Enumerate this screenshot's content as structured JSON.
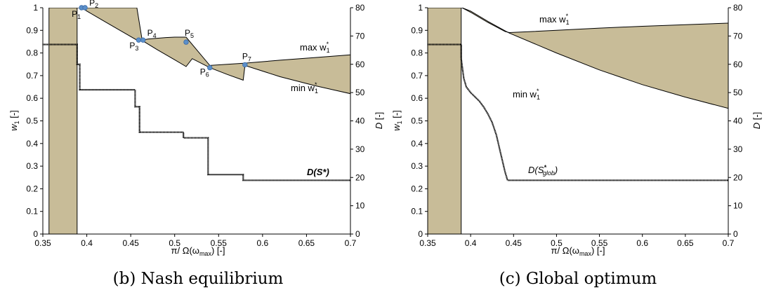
{
  "chart_data": [
    {
      "type": "line",
      "caption": "(b) Nash equilibrium",
      "xlabel": "π/ Ω(ω_max) [-]",
      "ylabel_left": "w1 [-]",
      "ylabel_right": "D [-]",
      "xlim": [
        0.35,
        0.7
      ],
      "ylim_left": [
        0,
        1
      ],
      "ylim_right": [
        0,
        80
      ],
      "x_ticks": [
        "0.35",
        "0.4",
        "0.45",
        "0.5",
        "0.55",
        "0.6",
        "0.65",
        "0.7"
      ],
      "y_left_ticks": [
        "0",
        "0.1",
        "0.2",
        "0.3",
        "0.4",
        "0.5",
        "0.6",
        "0.7",
        "0.8",
        "0.9",
        "1"
      ],
      "y_right_ticks": [
        "0",
        "10",
        "20",
        "30",
        "40",
        "50",
        "60",
        "70",
        "80"
      ],
      "colors": {
        "band": "#c8bc98",
        "band_stroke": "#000000",
        "point": "#5b8fc9",
        "line": "#000000"
      },
      "band_left": {
        "x": [
          0.357,
          0.389
        ],
        "lower": 0.0,
        "upper": 1.0
      },
      "max_w1": {
        "x": [
          0.389,
          0.394,
          0.4,
          0.41,
          0.42,
          0.43,
          0.44,
          0.45,
          0.457,
          0.463,
          0.47,
          0.48,
          0.49,
          0.5,
          0.51,
          0.513,
          0.54,
          0.58,
          0.62,
          0.66,
          0.7
        ],
        "y": [
          1.0,
          1.0,
          1.0,
          1.0,
          1.0,
          1.0,
          1.0,
          1.0,
          1.0,
          0.857,
          0.862,
          0.865,
          0.868,
          0.87,
          0.87,
          0.87,
          0.745,
          0.755,
          0.768,
          0.78,
          0.792
        ]
      },
      "min_w1": {
        "x": [
          0.389,
          0.394,
          0.4,
          0.42,
          0.44,
          0.457,
          0.463,
          0.48,
          0.5,
          0.513,
          0.52,
          0.54,
          0.56,
          0.578,
          0.58,
          0.62,
          0.66,
          0.7
        ],
        "y": [
          1.0,
          1.0,
          0.985,
          0.94,
          0.895,
          0.857,
          0.855,
          0.815,
          0.77,
          0.74,
          0.775,
          0.735,
          0.705,
          0.68,
          0.745,
          0.695,
          0.655,
          0.62
        ]
      },
      "points": [
        {
          "label": "P1",
          "x": 0.394,
          "y": 1.0
        },
        {
          "label": "P2",
          "x": 0.398,
          "y": 1.0
        },
        {
          "label": "P3",
          "x": 0.459,
          "y": 0.857
        },
        {
          "label": "P4",
          "x": 0.464,
          "y": 0.857
        },
        {
          "label": "P5",
          "x": 0.513,
          "y": 0.848
        },
        {
          "label": "P6",
          "x": 0.54,
          "y": 0.735
        },
        {
          "label": "P7",
          "x": 0.58,
          "y": 0.748
        }
      ],
      "D_series": {
        "name": "D(S*)",
        "x": [
          0.35,
          0.389,
          0.389,
          0.392,
          0.392,
          0.397,
          0.397,
          0.455,
          0.455,
          0.46,
          0.46,
          0.51,
          0.51,
          0.538,
          0.538,
          0.578,
          0.578,
          0.7
        ],
        "y": [
          67,
          67,
          60,
          60,
          51,
          51,
          51,
          51,
          45,
          45,
          36,
          36,
          34,
          34,
          21,
          21,
          19,
          19
        ]
      },
      "labels": {
        "caption": "(b) Nash equilibrium",
        "xlabel": "π/ Ω(ω",
        "xlabel_sub": "max",
        "xlabel_tail": ") [-]",
        "ylabel_left": "w",
        "ylabel_left_sub": "1",
        "ylabel_left_tail": " [-]",
        "ylabel_right": "D",
        "ylabel_right_tail": " [-]",
        "max_w1": "max w",
        "min_w1": "min w",
        "w_sub": "1",
        "w_sup": "*",
        "d_series": "D(S*)"
      }
    },
    {
      "type": "line",
      "caption": "(c) Global optimum",
      "xlabel": "π/ Ω(ω_max) [-]",
      "ylabel_left": "w1 [-]",
      "ylabel_right": "D [-]",
      "xlim": [
        0.35,
        0.7
      ],
      "ylim_left": [
        0,
        1
      ],
      "ylim_right": [
        0,
        80
      ],
      "x_ticks": [
        "0.35",
        "0.4",
        "0.45",
        "0.5",
        "0.55",
        "0.6",
        "0.65",
        "0.7"
      ],
      "y_left_ticks": [
        "0",
        "0.1",
        "0.2",
        "0.3",
        "0.4",
        "0.5",
        "0.6",
        "0.7",
        "0.8",
        "0.9",
        "1"
      ],
      "y_right_ticks": [
        "0",
        "10",
        "20",
        "30",
        "40",
        "50",
        "60",
        "70",
        "80"
      ],
      "colors": {
        "band": "#c8bc98",
        "band_stroke": "#000000",
        "line": "#000000"
      },
      "band_left": {
        "x": [
          0.35,
          0.389
        ],
        "lower": 0.0,
        "upper": 1.0
      },
      "max_w1": {
        "x": [
          0.389,
          0.39,
          0.4,
          0.42,
          0.44,
          0.445,
          0.5,
          0.55,
          0.6,
          0.65,
          0.7
        ],
        "y": [
          1.0,
          1.0,
          0.98,
          0.935,
          0.895,
          0.89,
          0.9,
          0.91,
          0.918,
          0.925,
          0.932
        ]
      },
      "min_w1": {
        "x": [
          0.389,
          0.39,
          0.4,
          0.42,
          0.44,
          0.445,
          0.5,
          0.55,
          0.6,
          0.65,
          0.7
        ],
        "y": [
          1.0,
          1.0,
          0.985,
          0.94,
          0.898,
          0.888,
          0.8,
          0.725,
          0.66,
          0.605,
          0.555
        ]
      },
      "D_series": {
        "name": "D(S*glob)",
        "x": [
          0.35,
          0.389,
          0.389,
          0.392,
          0.395,
          0.4,
          0.405,
          0.41,
          0.415,
          0.42,
          0.425,
          0.43,
          0.435,
          0.44,
          0.443,
          0.7
        ],
        "y": [
          67,
          67,
          62,
          55,
          52,
          50,
          48.5,
          47,
          45,
          42.5,
          39.5,
          35,
          28.5,
          22,
          19,
          19
        ]
      },
      "labels": {
        "caption": "(c) Global optimum",
        "xlabel": "π/ Ω(ω",
        "xlabel_sub": "max",
        "xlabel_tail": ") [-]",
        "ylabel_left": "w",
        "ylabel_left_sub": "1",
        "ylabel_left_tail": " [-]",
        "ylabel_right": "D",
        "ylabel_right_tail": " [-]",
        "max_w1": "max w",
        "min_w1": "min w",
        "w_sub": "1",
        "w_sup": "*",
        "d_series": "D(S",
        "d_series_sup": "*",
        "d_series_sub": "glob",
        "d_series_tail": ")"
      }
    }
  ]
}
